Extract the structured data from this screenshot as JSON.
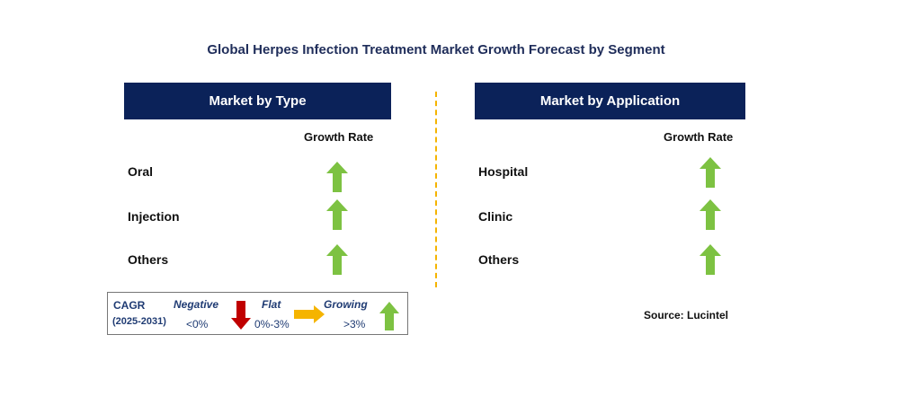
{
  "title": "Global Herpes Infection Treatment Market Growth Forecast by Segment",
  "colors": {
    "header_bg": "#0b2259",
    "growing": "#7dc242",
    "negative": "#c00000",
    "flat": "#f5b400",
    "divider": "#f5b400"
  },
  "left_panel": {
    "header": "Market by Type",
    "growth_label": "Growth Rate",
    "rows": [
      {
        "label": "Oral",
        "trend": "growing"
      },
      {
        "label": "Injection",
        "trend": "growing"
      },
      {
        "label": "Others",
        "trend": "growing"
      }
    ]
  },
  "right_panel": {
    "header": "Market by Application",
    "growth_label": "Growth Rate",
    "rows": [
      {
        "label": "Hospital",
        "trend": "growing"
      },
      {
        "label": "Clinic",
        "trend": "growing"
      },
      {
        "label": "Others",
        "trend": "growing"
      }
    ]
  },
  "legend": {
    "cagr": "CAGR",
    "period": "(2025-2031)",
    "negative_label": "Negative",
    "negative_range": "<0%",
    "flat_label": "Flat",
    "flat_range": "0%-3%",
    "growing_label": "Growing",
    "growing_range": ">3%"
  },
  "source": "Source: Lucintel",
  "chart_data": {
    "type": "table",
    "title": "Global Herpes Infection Treatment Market Growth Forecast by Segment",
    "segments": [
      {
        "name": "Market by Type",
        "items": [
          {
            "label": "Oral",
            "growth": "growing"
          },
          {
            "label": "Injection",
            "growth": "growing"
          },
          {
            "label": "Others",
            "growth": "growing"
          }
        ]
      },
      {
        "name": "Market by Application",
        "items": [
          {
            "label": "Hospital",
            "growth": "growing"
          },
          {
            "label": "Clinic",
            "growth": "growing"
          },
          {
            "label": "Others",
            "growth": "growing"
          }
        ]
      }
    ],
    "legend": {
      "negative": "<0%",
      "flat": "0%-3%",
      "growing": ">3%"
    }
  }
}
